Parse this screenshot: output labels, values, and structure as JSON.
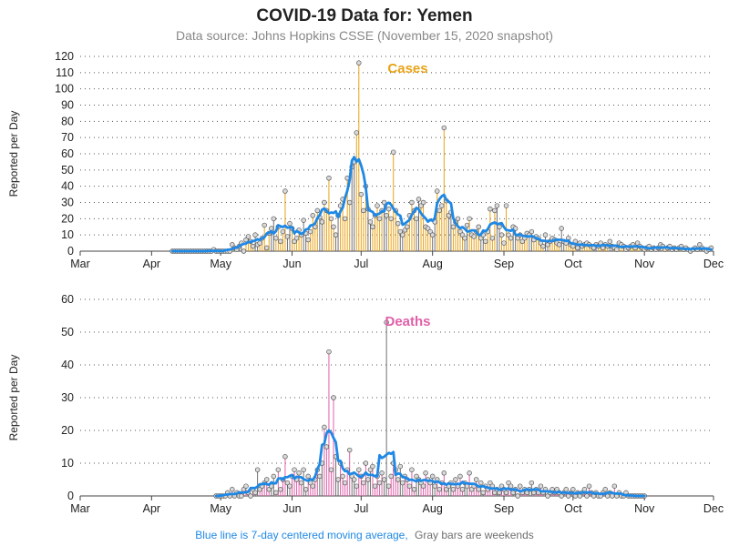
{
  "title": "COVID-19 Data for: Yemen",
  "subtitle": "Data source: Johns Hopkins CSSE (November 15, 2020 snapshot)",
  "footnote": {
    "blue_text": "Blue line is 7-day centered moving average,",
    "gray_text": "Gray bars are weekends"
  },
  "colors": {
    "cases": "#e8a317",
    "deaths": "#e060a8",
    "average": "#1e88e5",
    "weekend": "#707070"
  },
  "chart_data": [
    {
      "type": "bar",
      "title": "Cases",
      "ylabel": "Reported per Day",
      "ylim": [
        0,
        120
      ],
      "yticks": [
        0,
        10,
        20,
        30,
        40,
        50,
        60,
        70,
        80,
        90,
        100,
        110,
        120
      ],
      "xticks": [
        "Mar",
        "Apr",
        "May",
        "Jun",
        "Jul",
        "Aug",
        "Sep",
        "Oct",
        "Nov",
        "Dec"
      ],
      "xlim": [
        "2020-03-01",
        "2020-12-01"
      ],
      "start": "2020-04-10",
      "values": [
        0,
        0,
        0,
        0,
        0,
        0,
        0,
        0,
        0,
        0,
        0,
        0,
        0,
        0,
        0,
        0,
        0,
        0,
        1,
        0,
        0,
        0,
        0,
        0,
        0,
        0,
        4,
        2,
        1,
        3,
        5,
        0,
        7,
        9,
        6,
        3,
        10,
        4,
        5,
        8,
        16,
        2,
        11,
        14,
        20,
        8,
        15,
        6,
        12,
        37,
        9,
        17,
        14,
        6,
        8,
        13,
        10,
        19,
        11,
        7,
        12,
        22,
        15,
        25,
        21,
        18,
        30,
        25,
        45,
        20,
        15,
        10,
        22,
        28,
        32,
        20,
        45,
        30,
        52,
        55,
        73,
        116,
        35,
        25,
        40,
        26,
        18,
        15,
        22,
        28,
        20,
        25,
        30,
        22,
        26,
        20,
        61,
        25,
        17,
        12,
        10,
        13,
        15,
        22,
        30,
        25,
        20,
        32,
        28,
        30,
        15,
        14,
        12,
        10,
        18,
        37,
        25,
        28,
        76,
        31,
        22,
        24,
        15,
        18,
        20,
        12,
        10,
        8,
        16,
        20,
        10,
        9,
        12,
        15,
        8,
        10,
        6,
        12,
        26,
        8,
        25,
        28,
        15,
        10,
        5,
        28,
        10,
        8,
        15,
        14,
        8,
        10,
        6,
        8,
        11,
        10,
        12,
        7,
        9,
        8,
        5,
        3,
        10,
        4,
        6,
        8,
        7,
        5,
        4,
        14,
        6,
        5,
        8,
        4,
        3,
        6,
        2,
        5,
        3,
        4,
        5,
        4,
        3,
        2,
        4,
        3,
        5,
        2,
        4,
        3,
        6,
        3,
        2,
        1,
        5,
        4,
        3,
        1,
        2,
        3,
        4,
        2,
        5,
        3,
        2,
        1,
        2,
        3,
        1,
        2,
        1,
        2,
        4,
        3,
        1,
        2,
        3,
        1,
        2,
        1,
        2,
        3,
        1,
        2,
        1,
        0,
        1,
        2,
        1,
        4,
        2,
        1,
        0,
        1,
        2
      ]
    },
    {
      "type": "bar",
      "title": "Deaths",
      "ylabel": "Reported per Day",
      "ylim": [
        0,
        60
      ],
      "yticks": [
        0,
        10,
        20,
        30,
        40,
        50,
        60
      ],
      "xticks": [
        "Mar",
        "Apr",
        "May",
        "Jun",
        "Jul",
        "Aug",
        "Sep",
        "Oct",
        "Nov",
        "Dec"
      ],
      "xlim": [
        "2020-03-01",
        "2020-12-01"
      ],
      "start": "2020-04-29",
      "values": [
        0,
        0,
        0,
        0,
        0,
        1,
        0,
        2,
        0,
        1,
        0,
        0,
        2,
        3,
        1,
        0,
        2,
        1,
        8,
        2,
        3,
        4,
        5,
        2,
        3,
        6,
        1,
        8,
        2,
        5,
        12,
        4,
        3,
        6,
        8,
        5,
        7,
        4,
        8,
        2,
        6,
        4,
        3,
        5,
        8,
        6,
        10,
        21,
        15,
        44,
        8,
        30,
        12,
        5,
        10,
        6,
        4,
        8,
        14,
        6,
        5,
        3,
        8,
        6,
        4,
        10,
        5,
        8,
        9,
        3,
        6,
        4,
        7,
        5,
        53,
        3,
        6,
        10,
        8,
        5,
        9,
        4,
        6,
        5,
        3,
        8,
        2,
        6,
        5,
        4,
        3,
        7,
        5,
        4,
        6,
        3,
        5,
        2,
        4,
        7,
        2,
        3,
        4,
        2,
        5,
        3,
        6,
        2,
        4,
        3,
        7,
        2,
        3,
        5,
        2,
        4,
        1,
        3,
        2,
        4,
        3,
        1,
        2,
        1,
        3,
        2,
        1,
        4,
        3,
        1,
        2,
        0,
        3,
        1,
        2,
        1,
        2,
        4,
        1,
        2,
        1,
        3,
        1,
        2,
        0,
        1,
        2,
        1,
        2,
        1,
        0,
        1,
        2,
        0,
        1,
        2,
        0,
        1,
        0,
        1,
        2,
        0,
        3,
        1,
        0,
        1,
        0,
        0,
        1,
        2,
        0,
        1,
        0,
        3,
        0,
        1,
        0,
        0,
        1,
        0,
        0,
        0,
        0,
        0,
        0,
        0,
        0
      ]
    }
  ]
}
